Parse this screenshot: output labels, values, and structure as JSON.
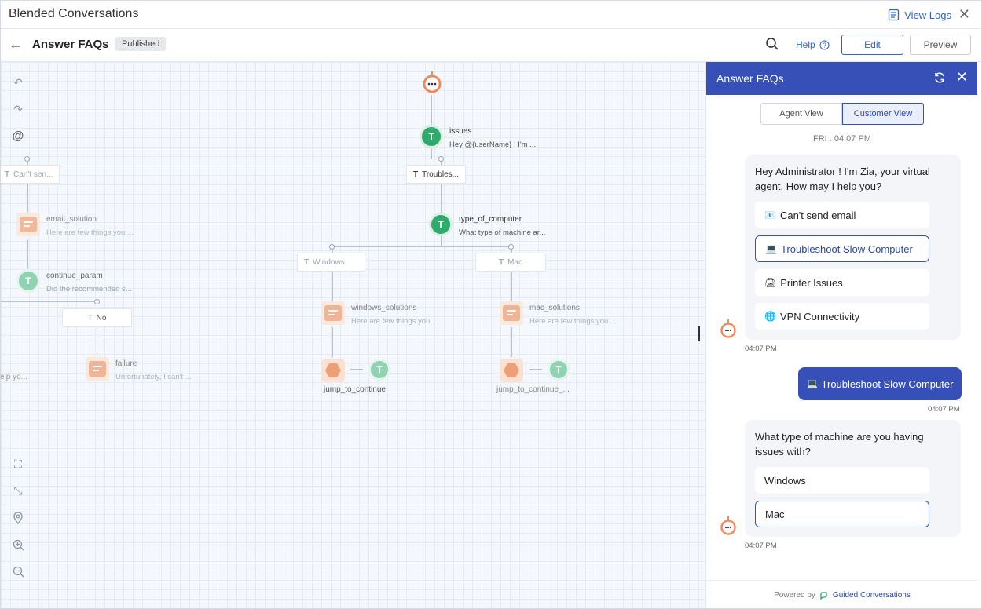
{
  "app": {
    "title": "Blended Conversations",
    "view_logs": "View Logs",
    "close": "✕"
  },
  "header": {
    "back": "←",
    "title": "Answer FAQs",
    "status": "Published",
    "help": "Help",
    "edit": "Edit",
    "preview": "Preview"
  },
  "flow": {
    "tags": {
      "cant_send": "Can't sen...",
      "troubles": "Troubles...",
      "windows": "Windows",
      "mac": "Mac",
      "no": "No"
    },
    "nodes": {
      "issues": {
        "name": "issues",
        "desc": "Hey  @{userName}  ! I'm ..."
      },
      "type_of_computer": {
        "name": "type_of_computer",
        "desc": "What type of machine ar..."
      },
      "email_solution": {
        "name": "email_solution",
        "desc": "Here are few things you ..."
      },
      "continue_param": {
        "name": "continue_param",
        "desc": "Did the recommended s..."
      },
      "windows_solutions": {
        "name": "windows_solutions",
        "desc": "Here are few things you ..."
      },
      "mac_solutions": {
        "name": "mac_solutions",
        "desc": "Here are few things you ..."
      },
      "failure": {
        "name": "failure",
        "desc": "Unfortunately, I can't ..."
      },
      "jump_windows": "jump_to_continue",
      "jump_mac": "jump_to_continue_...",
      "left_fragment": "elp yo..."
    }
  },
  "panel": {
    "title": "Answer FAQs",
    "tabs": [
      "Agent View",
      "Customer View"
    ],
    "date": "FRI . 04:07 PM",
    "bot_msg_1": "Hey Administrator ! I'm Zia, your virtual agent. How may I help you?",
    "options_1": [
      {
        "emoji": "📧",
        "label": "Can't send email"
      },
      {
        "emoji": "💻",
        "label": "Troubleshoot Slow Computer"
      },
      {
        "emoji": "🖨",
        "label": "Printer Issues"
      },
      {
        "emoji": "🌐",
        "label": "VPN Connectivity"
      }
    ],
    "time_1": "04:07 PM",
    "user_msg": "Troubleshoot Slow Computer",
    "user_emoji": "💻",
    "time_2": "04:07 PM",
    "bot_msg_2": "What type of machine are you having issues with?",
    "options_2": [
      "Windows",
      "Mac"
    ],
    "time_3": "04:07 PM",
    "footer_prefix": "Powered by",
    "footer_brand": "Guided Conversations"
  },
  "colors": {
    "accent": "#3650b8",
    "link": "#2f64c7",
    "green": "#2eaa6c",
    "orange": "#f0a57b"
  }
}
